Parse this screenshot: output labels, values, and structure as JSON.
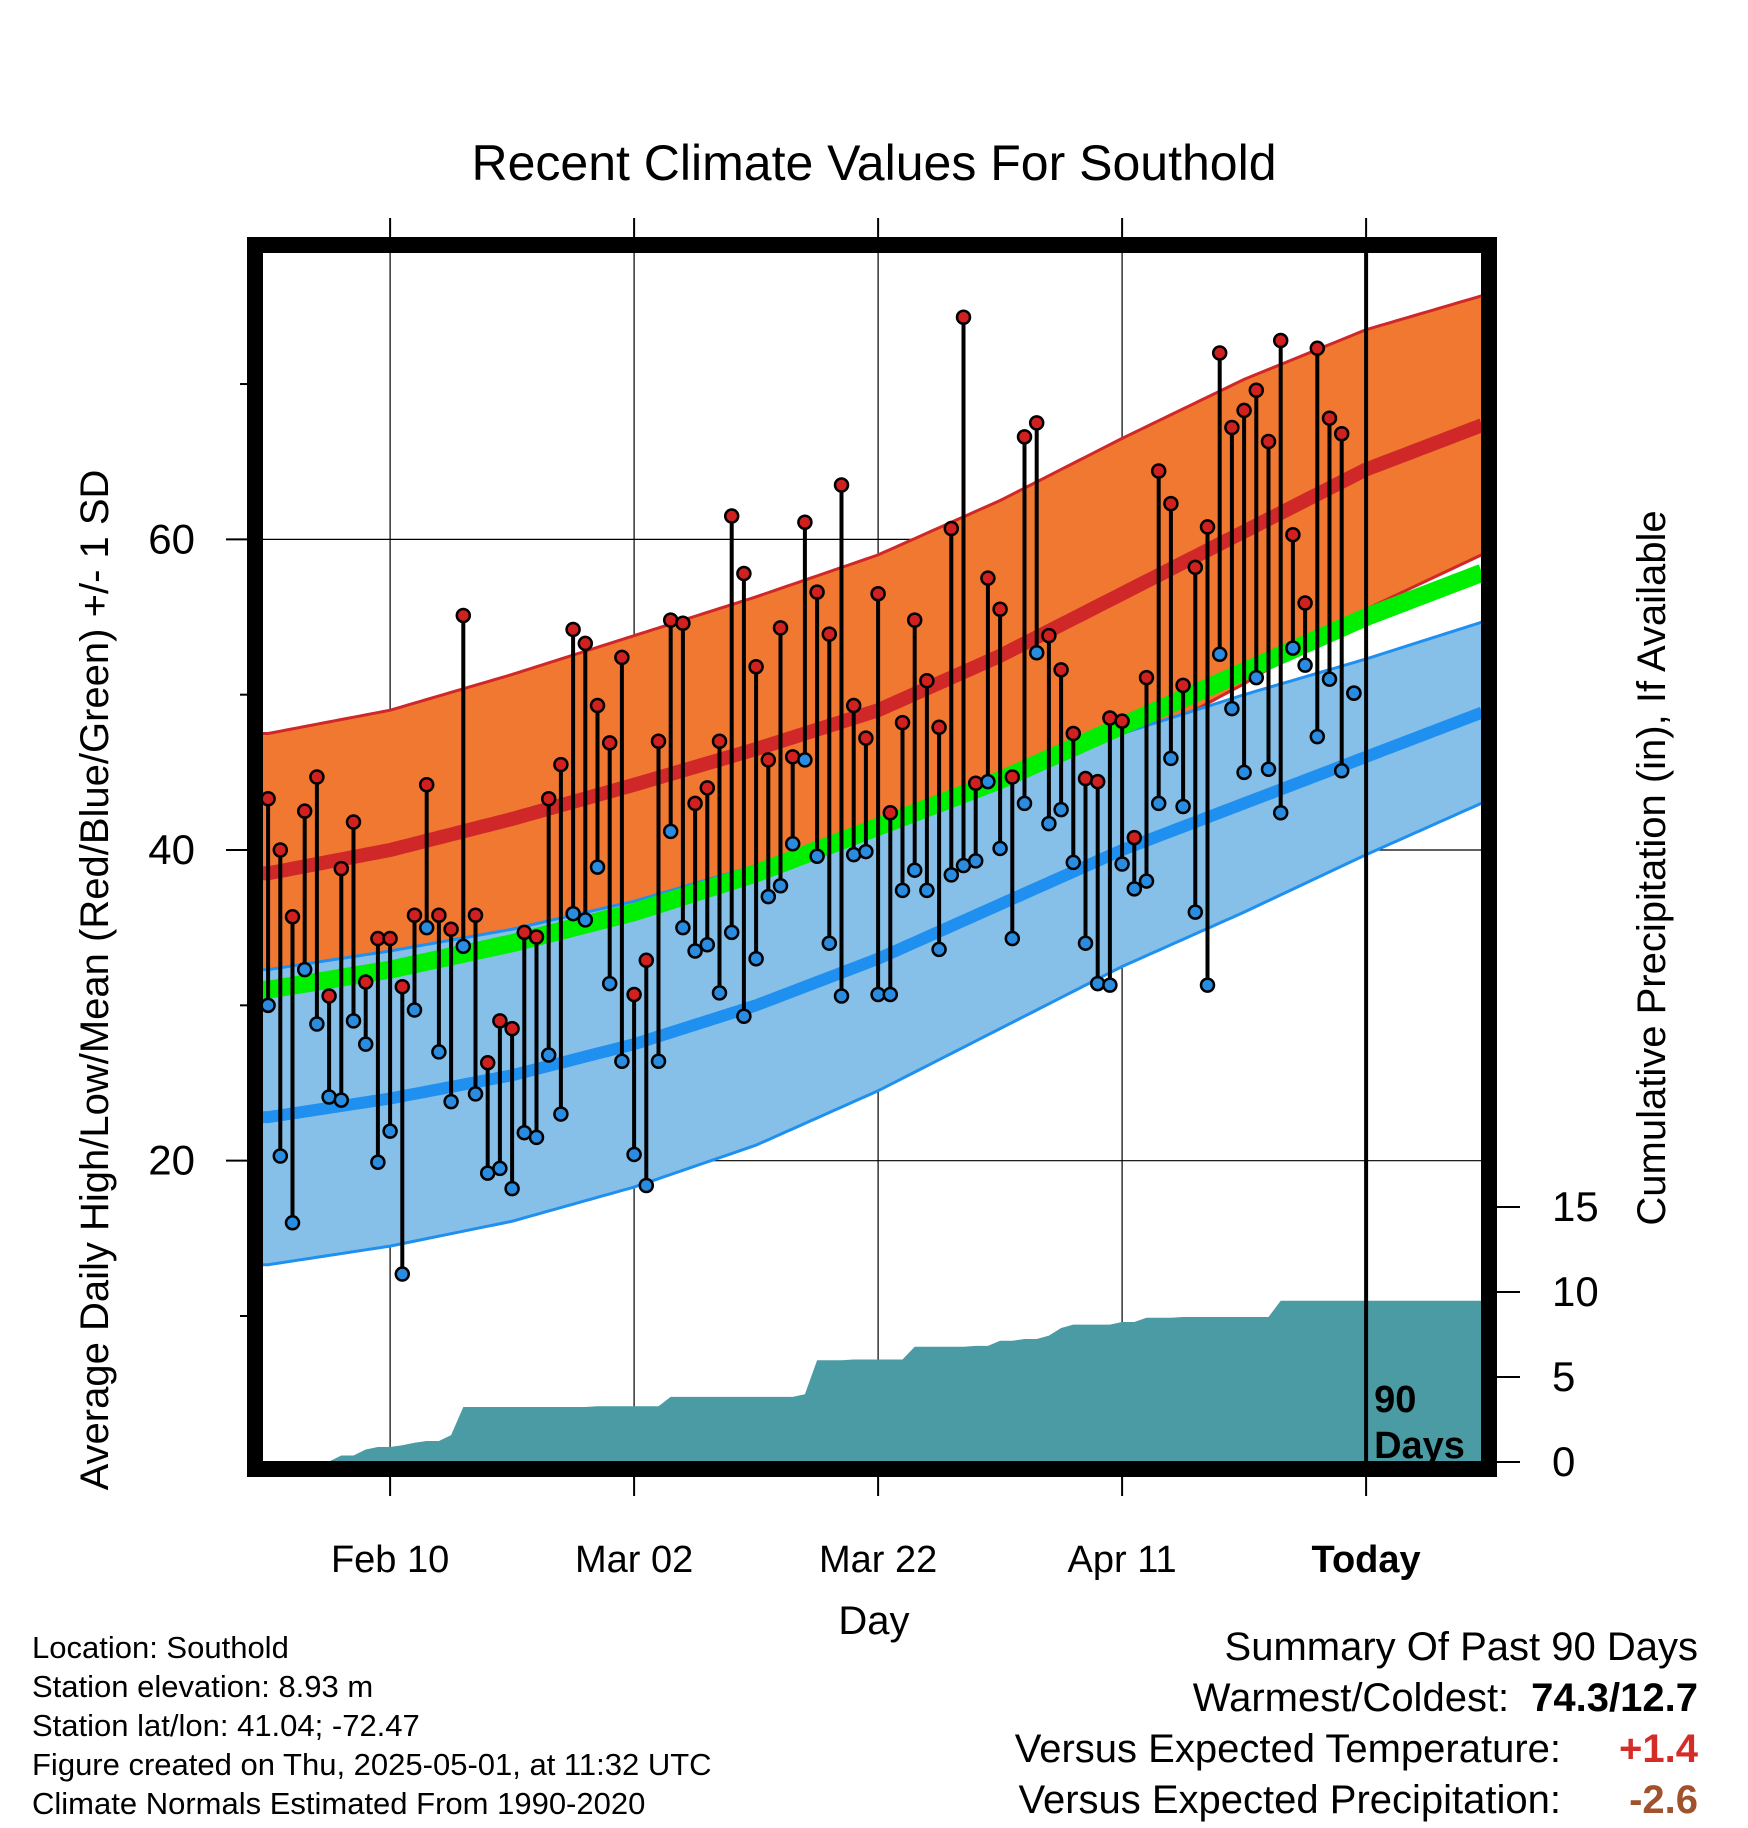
{
  "chart_data": {
    "type": "line",
    "title": "Recent Climate Values For Southold",
    "xlabel": "Day",
    "ylabel": "Average Daily High/Low/Mean (Red/Blue/Green) +/- 1 SD",
    "y2label": "Cumulative Precipitation (in), If Available",
    "x_ticks": [
      "Feb 10",
      "Mar 02",
      "Mar 22",
      "Apr 11",
      "Today"
    ],
    "x_tick_days": [
      10,
      30,
      50,
      70,
      90
    ],
    "x_range": [
      -0.5,
      99.5
    ],
    "ylim": [
      0.6,
      78.5
    ],
    "y_ticks": [
      20,
      40,
      60
    ],
    "y_minor_ticks": [
      10,
      30,
      50,
      70
    ],
    "y2lim": [
      0,
      15
    ],
    "y2_ticks": [
      0,
      5,
      10,
      15
    ],
    "today_marker_label": [
      "90",
      "Days"
    ],
    "grid": true,
    "colors": {
      "high_band": "#F07830",
      "high_mean": "#D02828",
      "low_band": "#86C0E8",
      "low_mean": "#2090F0",
      "mean": "#00EE00",
      "precip": "#4A9BA4",
      "high_dot": "#D02020",
      "low_dot": "#2A8CE0"
    },
    "normal_days": [
      0,
      10,
      20,
      30,
      40,
      50,
      60,
      70,
      80,
      90,
      100
    ],
    "normal_high": [
      38.5,
      40.0,
      42.0,
      44.2,
      46.5,
      49.0,
      52.5,
      56.5,
      60.5,
      64.5,
      67.5
    ],
    "normal_high_sd": [
      9.0,
      9.0,
      9.3,
      9.6,
      9.8,
      10.0,
      10.0,
      10.0,
      9.8,
      9.0,
      8.3
    ],
    "normal_low": [
      22.8,
      24.0,
      25.5,
      27.5,
      30.0,
      33.0,
      36.5,
      40.0,
      43.0,
      46.0,
      49.0
    ],
    "normal_low_sd": [
      9.5,
      9.5,
      9.4,
      9.2,
      9.0,
      8.5,
      8.0,
      7.5,
      7.0,
      6.3,
      5.8
    ],
    "normal_mean": [
      31.0,
      32.3,
      34.0,
      36.0,
      38.5,
      41.5,
      44.5,
      48.0,
      51.5,
      55.0,
      58.0
    ],
    "daily_days": [
      0,
      1,
      2,
      3,
      4,
      5,
      6,
      7,
      8,
      9,
      10,
      11,
      12,
      13,
      14,
      15,
      16,
      17,
      18,
      19,
      20,
      21,
      22,
      23,
      24,
      25,
      26,
      27,
      28,
      29,
      30,
      31,
      32,
      33,
      34,
      35,
      36,
      37,
      38,
      39,
      40,
      41,
      42,
      43,
      44,
      45,
      46,
      47,
      48,
      49,
      50,
      51,
      52,
      53,
      54,
      55,
      56,
      57,
      58,
      59,
      60,
      61,
      62,
      63,
      64,
      65,
      66,
      67,
      68,
      69,
      70,
      71,
      72,
      73,
      74,
      75,
      76,
      77,
      78,
      79,
      80,
      81,
      82,
      83,
      84,
      85,
      86,
      87,
      88,
      89
    ],
    "daily_high": [
      43.3,
      40.0,
      35.7,
      42.5,
      44.7,
      30.6,
      38.8,
      41.8,
      31.5,
      34.3,
      34.3,
      31.2,
      35.8,
      44.2,
      35.8,
      34.9,
      55.1,
      35.8,
      26.3,
      29.0,
      28.5,
      34.7,
      34.4,
      43.3,
      45.5,
      54.2,
      53.3,
      49.3,
      46.9,
      52.4,
      30.7,
      32.9,
      47.0,
      54.8,
      54.6,
      43.0,
      44.0,
      47.0,
      61.5,
      57.8,
      51.8,
      45.8,
      54.3,
      46.0,
      61.1,
      56.6,
      53.9,
      63.5,
      49.3,
      47.2,
      56.5,
      42.4,
      48.2,
      54.8,
      50.9,
      47.9,
      60.7,
      74.3,
      44.3,
      57.5,
      55.5,
      44.7,
      66.6,
      67.5,
      53.8,
      51.6,
      47.5,
      44.6,
      44.4,
      48.5,
      48.3,
      40.8,
      51.1,
      64.4,
      62.3,
      50.6,
      58.2,
      60.8,
      72.0,
      67.2,
      68.3,
      69.6,
      66.3,
      72.8,
      60.3,
      55.9,
      72.3,
      67.8,
      66.8,
      50.1
    ],
    "daily_low": [
      30.0,
      20.3,
      16.0,
      32.3,
      28.8,
      24.1,
      23.9,
      29.0,
      27.5,
      19.9,
      21.9,
      12.7,
      29.7,
      35.0,
      27.0,
      23.8,
      33.8,
      24.3,
      19.2,
      19.5,
      18.2,
      21.8,
      21.5,
      26.8,
      23.0,
      35.9,
      35.5,
      38.9,
      31.4,
      26.4,
      20.4,
      18.4,
      26.4,
      41.2,
      35.0,
      33.5,
      33.9,
      30.8,
      34.7,
      29.3,
      33.0,
      37.0,
      37.7,
      40.4,
      45.8,
      39.6,
      34.0,
      30.6,
      39.7,
      39.9,
      30.7,
      30.7,
      37.4,
      38.7,
      37.4,
      33.6,
      38.4,
      39.0,
      39.3,
      44.4,
      40.1,
      34.3,
      43.0,
      52.7,
      41.7,
      42.6,
      39.2,
      34.0,
      31.4,
      31.3,
      39.1,
      37.5,
      38.0,
      43.0,
      45.9,
      42.8,
      36.0,
      31.3,
      52.6,
      49.1,
      45.0,
      51.1,
      45.2,
      42.4,
      53.0,
      51.9,
      47.3,
      51.0,
      45.1,
      50.1
    ],
    "precip_cum_days": [
      0,
      1,
      2,
      3,
      4,
      5,
      6,
      7,
      8,
      9,
      10,
      11,
      12,
      13,
      14,
      15,
      16,
      17,
      18,
      19,
      20,
      21,
      22,
      23,
      24,
      25,
      26,
      27,
      28,
      29,
      30,
      31,
      32,
      33,
      34,
      35,
      36,
      37,
      38,
      39,
      40,
      41,
      42,
      43,
      44,
      45,
      46,
      47,
      48,
      49,
      50,
      51,
      52,
      53,
      54,
      55,
      56,
      57,
      58,
      59,
      60,
      61,
      62,
      63,
      64,
      65,
      66,
      67,
      68,
      69,
      70,
      71,
      72,
      73,
      74,
      75,
      76,
      77,
      78,
      79,
      80,
      81,
      82,
      83,
      84,
      85,
      86,
      87,
      88,
      89,
      90
    ],
    "precip_cum": [
      0.0,
      0.1,
      0.15,
      0.15,
      0.15,
      0.15,
      0.5,
      0.5,
      0.85,
      1.0,
      1.0,
      1.1,
      1.25,
      1.35,
      1.35,
      1.7,
      3.35,
      3.35,
      3.35,
      3.35,
      3.35,
      3.35,
      3.35,
      3.35,
      3.35,
      3.35,
      3.35,
      3.4,
      3.4,
      3.4,
      3.4,
      3.4,
      3.4,
      3.95,
      3.95,
      3.95,
      3.95,
      3.95,
      3.95,
      3.95,
      3.95,
      3.95,
      3.95,
      3.95,
      4.1,
      6.1,
      6.1,
      6.1,
      6.15,
      6.15,
      6.15,
      6.15,
      6.15,
      6.9,
      6.9,
      6.9,
      6.9,
      6.9,
      6.95,
      6.95,
      7.25,
      7.25,
      7.35,
      7.35,
      7.55,
      8.0,
      8.2,
      8.2,
      8.2,
      8.2,
      8.35,
      8.35,
      8.6,
      8.6,
      8.6,
      8.65,
      8.65,
      8.65,
      8.65,
      8.65,
      8.65,
      8.65,
      8.65,
      9.6,
      9.6,
      9.6,
      9.6,
      9.6,
      9.6,
      9.6,
      9.6
    ],
    "precip_extend_to_day": 99.5
  },
  "info": {
    "location": "Location: Southold",
    "elevation": "Station elevation: 8.93 m",
    "latlon": "Station lat/lon: 41.04; -72.47",
    "created": "Figure created on Thu, 2025-05-01, at 11:32 UTC",
    "normals": "Climate Normals Estimated From 1990-2020"
  },
  "summary": {
    "title": "Summary Of Past 90 Days",
    "warmest_label": "Warmest/Coldest:",
    "warmest_value": "74.3/12.7",
    "temp_label": "Versus Expected Temperature:",
    "temp_value": "+1.4",
    "temp_color": "#D42C28",
    "precip_label": "Versus Expected Precipitation:",
    "precip_value": "-2.6",
    "precip_color": "#A0522D"
  }
}
